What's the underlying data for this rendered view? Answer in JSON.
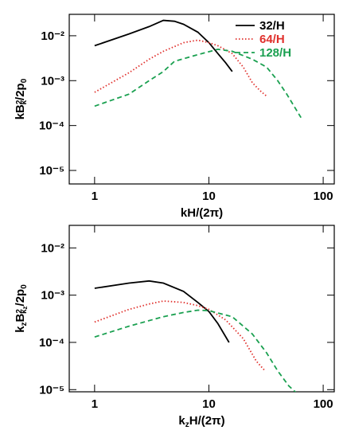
{
  "chart_data": [
    {
      "type": "line",
      "xscale": "log",
      "yscale": "log",
      "legend": "upper right",
      "xlabel": [
        "kH/(2π)"
      ],
      "ylabel": [
        "kB",
        "2",
        "k",
        "/2p",
        "0"
      ],
      "xlim": [
        0.6,
        125
      ],
      "ylim": [
        5e-06,
        0.03
      ],
      "xticks": [
        1,
        10,
        100
      ],
      "yticks": [
        {
          "value": 1e-05,
          "label": "10⁻⁵"
        },
        {
          "value": 0.0001,
          "label": "10⁻⁴"
        },
        {
          "value": 0.001,
          "label": "10⁻³"
        },
        {
          "value": 0.01,
          "label": "10⁻²"
        }
      ],
      "series": [
        {
          "name": "32/H",
          "color": "#000000",
          "linestyle": "solid",
          "x": [
            1,
            2,
            3,
            4,
            5,
            6,
            8,
            10,
            12,
            14,
            16
          ],
          "values": [
            0.006,
            0.011,
            0.016,
            0.022,
            0.021,
            0.018,
            0.012,
            0.007,
            0.004,
            0.0025,
            0.0016
          ]
        },
        {
          "name": "64/H",
          "color": "#e0302c",
          "linestyle": "dotted",
          "x": [
            1,
            2,
            3,
            4,
            6,
            8,
            10,
            12,
            16,
            20,
            24,
            28,
            32
          ],
          "values": [
            0.00055,
            0.0015,
            0.003,
            0.0045,
            0.007,
            0.008,
            0.007,
            0.006,
            0.004,
            0.002,
            0.0009,
            0.0006,
            0.00045
          ]
        },
        {
          "name": "128/H",
          "color": "#1aa050",
          "linestyle": "dashed",
          "x": [
            1,
            2,
            3,
            4,
            5,
            8,
            12,
            16,
            24,
            32,
            40,
            48,
            64
          ],
          "values": [
            0.00027,
            0.0005,
            0.001,
            0.0016,
            0.0027,
            0.0038,
            0.005,
            0.0045,
            0.003,
            0.002,
            0.001,
            0.0005,
            0.00015
          ]
        }
      ]
    },
    {
      "type": "line",
      "xscale": "log",
      "yscale": "log",
      "xlabel": [
        "k",
        "z",
        "H/(2π)"
      ],
      "ylabel": [
        "k",
        "z",
        "B",
        "2",
        "k",
        "z",
        "/2p",
        "0"
      ],
      "xlim": [
        0.6,
        125
      ],
      "ylim": [
        9e-06,
        0.03
      ],
      "xticks": [
        1,
        10,
        100
      ],
      "yticks": [
        {
          "value": 1e-05,
          "label": "10⁻⁵"
        },
        {
          "value": 0.0001,
          "label": "10⁻⁴"
        },
        {
          "value": 0.001,
          "label": "10⁻³"
        },
        {
          "value": 0.01,
          "label": "10⁻²"
        }
      ],
      "series": [
        {
          "color": "#000000",
          "linestyle": "solid",
          "x": [
            1,
            2,
            3,
            4,
            6,
            8,
            10,
            12,
            15
          ],
          "values": [
            0.0014,
            0.0018,
            0.002,
            0.0018,
            0.0012,
            0.0007,
            0.00045,
            0.00025,
            0.0001
          ]
        },
        {
          "color": "#e0302c",
          "linestyle": "dotted",
          "x": [
            1,
            2,
            3,
            4,
            6,
            8,
            10,
            14,
            20,
            26,
            31
          ],
          "values": [
            0.00027,
            0.0005,
            0.00065,
            0.00075,
            0.0007,
            0.0006,
            0.0005,
            0.0003,
            0.00012,
            4e-05,
            2.5e-05
          ]
        },
        {
          "color": "#1aa050",
          "linestyle": "dashed",
          "x": [
            1,
            2,
            4,
            6,
            8,
            10,
            16,
            24,
            32,
            40,
            50,
            60
          ],
          "values": [
            0.00013,
            0.00022,
            0.00035,
            0.00043,
            0.00048,
            0.00047,
            0.00035,
            0.00015,
            6e-05,
            2.5e-05,
            1.2e-05,
            8e-06
          ]
        }
      ]
    }
  ]
}
